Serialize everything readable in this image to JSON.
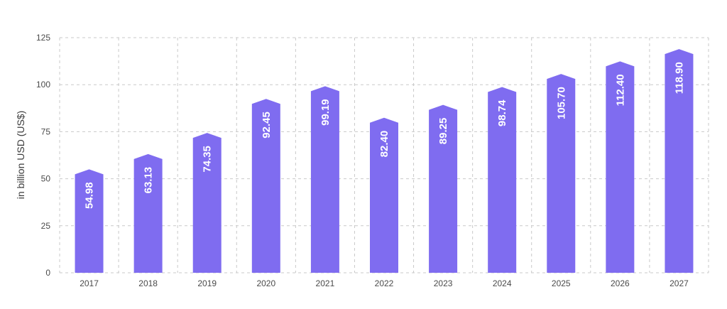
{
  "chart_data": {
    "type": "bar",
    "categories": [
      "2017",
      "2018",
      "2019",
      "2020",
      "2021",
      "2022",
      "2023",
      "2024",
      "2025",
      "2026",
      "2027"
    ],
    "values": [
      54.98,
      63.13,
      74.35,
      92.45,
      99.19,
      82.4,
      89.25,
      98.74,
      105.7,
      112.4,
      118.9
    ],
    "value_labels": [
      "54.98",
      "63.13",
      "74.35",
      "92.45",
      "99.19",
      "82.40",
      "89.25",
      "98.74",
      "105.70",
      "112.40",
      "118.90"
    ],
    "title": "",
    "xlabel": "",
    "ylabel": "in billion USD (US$)",
    "ylim": [
      0,
      125
    ],
    "yticks": [
      0,
      25,
      50,
      75,
      100,
      125
    ],
    "grid": true,
    "legend": "none",
    "bar_color": "#7f6cf0"
  }
}
